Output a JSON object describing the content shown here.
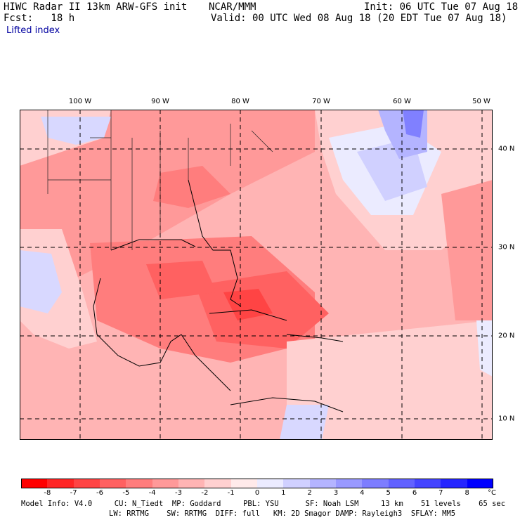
{
  "header": {
    "model": "HIWC Radar II 13km ARW-GFS init",
    "org": "NCAR/MMM",
    "init": "Init: 06 UTC Tue 07 Aug 18",
    "fcst": "Fcst:   18 h",
    "valid": "Valid: 00 UTC Wed 08 Aug 18 (20 EDT Tue 07 Aug 18)",
    "field": "Lifted index"
  },
  "map": {
    "lon_labels": [
      "100 W",
      "90 W",
      "80 W",
      "70 W",
      "60 W",
      "50 W"
    ],
    "lat_labels": [
      "40 N",
      "30 N",
      "20 N",
      "10 N"
    ]
  },
  "colorbar": {
    "ticks": [
      "-8",
      "-7",
      "-6",
      "-5",
      "-4",
      "-3",
      "-2",
      "-1",
      "0",
      "1",
      "2",
      "3",
      "4",
      "5",
      "6",
      "7",
      "8"
    ],
    "unit": "°C",
    "colors": [
      "#ff0000",
      "#ff2525",
      "#ff4444",
      "#ff6161",
      "#ff7d7d",
      "#ff9999",
      "#ffb4b4",
      "#ffd0d0",
      "#ffeaea",
      "#ebebff",
      "#d0d0ff",
      "#b4b4ff",
      "#9999ff",
      "#7d7dff",
      "#6161ff",
      "#4444ff",
      "#2525ff",
      "#0000ff"
    ]
  },
  "footer": {
    "line1": "Model Info: V4.0     CU: N_Tiedt  MP: Goddard     PBL: YSU      SF: Noah LSM     13 km    51 levels    65 sec",
    "line2": "LW: RRTMG    SW: RRTMG  DIFF: full   KM: 2D Smagor DAMP: Rayleigh3  SFLAY: MM5"
  }
}
